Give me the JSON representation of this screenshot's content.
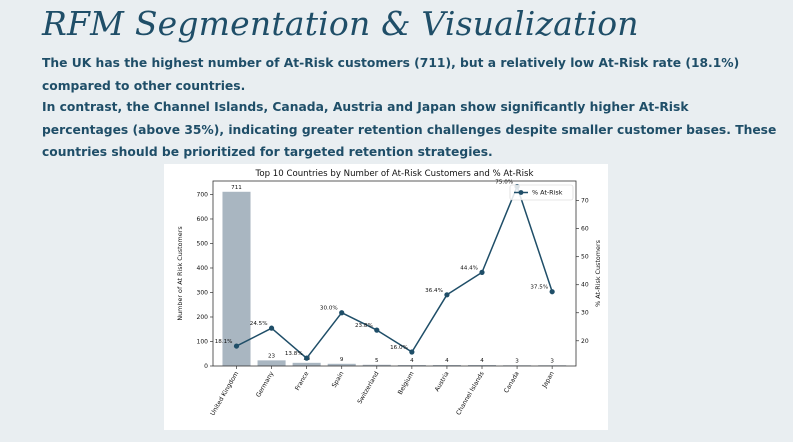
{
  "header": {
    "title": "RFM Segmentation & Visualization",
    "paragraph_1": "The UK has the highest number of At-Risk customers (711), but a relatively low At-Risk rate (18.1%) compared to other countries.",
    "paragraph_2": "In contrast, the Channel Islands, Canada, Austria and Japan show significantly higher At-Risk percentages (above 35%), indicating greater retention challenges despite smaller customer bases. These countries should be prioritized for targeted retention strategies."
  },
  "colors": {
    "title_text": "#1f4e68",
    "bar": "#a9b6c1",
    "line": "#1f4e68"
  },
  "chart_data": {
    "type": "bar",
    "title": "Top 10 Countries by Number of At-Risk Customers and % At-Risk",
    "categories": [
      "United Kingdom",
      "Germany",
      "France",
      "Spain",
      "Switzerland",
      "Belgium",
      "Austria",
      "Channel Islands",
      "Canada",
      "Japan"
    ],
    "series": [
      {
        "name": "Number of At Risk Customers",
        "kind": "bar",
        "axis": "left",
        "values": [
          711,
          23,
          13,
          9,
          5,
          4,
          4,
          4,
          3,
          3
        ],
        "labels": [
          "711",
          "23",
          "13",
          "9",
          "5",
          "4",
          "4",
          "4",
          "3",
          "3"
        ]
      },
      {
        "name": "% At-Risk",
        "kind": "line",
        "axis": "right",
        "values": [
          18.1,
          24.5,
          13.8,
          30.0,
          23.8,
          16.0,
          36.4,
          44.4,
          75.0,
          37.5
        ],
        "labels": [
          "18.1%",
          "24.5%",
          "13.8%",
          "30.0%",
          "23.8%",
          "16.0%",
          "36.4%",
          "44.4%",
          "75.0%",
          "37.5%"
        ]
      }
    ],
    "ylabel": "Number of At Risk Customers",
    "ylabel_right": "% At-Risk Customers",
    "ylim": [
      0,
      755
    ],
    "ylim_right": [
      11,
      77
    ],
    "yticks": [
      0,
      100,
      200,
      300,
      400,
      500,
      600,
      700
    ],
    "yticks_right": [
      20,
      30,
      40,
      50,
      60,
      70
    ],
    "legend": {
      "label": "% At-Risk",
      "position": "top-right"
    },
    "grid": false
  }
}
